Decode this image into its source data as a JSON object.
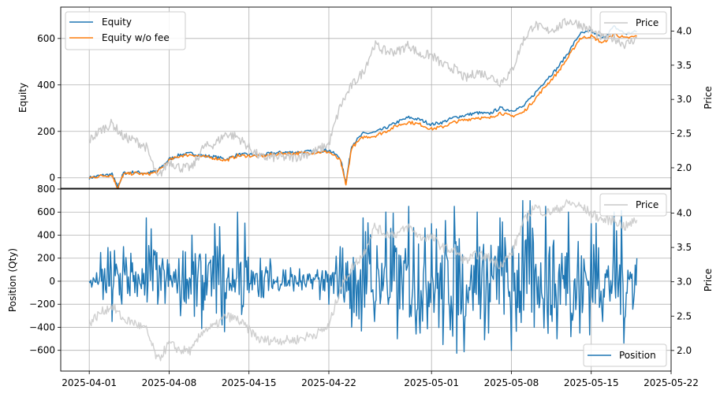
{
  "chart_data": [
    {
      "type": "line",
      "panel": "top",
      "ylabel": "Equity",
      "y2label": "Price",
      "ylim": [
        -45,
        735
      ],
      "y2lim": [
        1.7,
        4.35
      ],
      "yticks": [
        0,
        200,
        400,
        600
      ],
      "y2ticks": [
        2.0,
        2.5,
        3.0,
        3.5,
        4.0
      ],
      "y2ticklabels": [
        "2.0",
        "2.5",
        "3.0",
        "3.5",
        "4.0"
      ],
      "grid": true,
      "legend_left": "upper-left",
      "legend_right": "upper-right",
      "series": [
        {
          "name": "Equity",
          "color": "#1f77b4",
          "x": [
            "2025-04-01",
            "2025-04-02",
            "2025-04-03",
            "2025-04-03T12",
            "2025-04-04",
            "2025-04-05",
            "2025-04-06",
            "2025-04-07",
            "2025-04-08",
            "2025-04-09",
            "2025-04-10",
            "2025-04-11",
            "2025-04-12",
            "2025-04-13",
            "2025-04-14",
            "2025-04-15",
            "2025-04-16",
            "2025-04-17",
            "2025-04-18",
            "2025-04-19",
            "2025-04-20",
            "2025-04-21",
            "2025-04-22",
            "2025-04-23",
            "2025-04-23T12",
            "2025-04-24",
            "2025-04-25",
            "2025-04-26",
            "2025-04-27",
            "2025-04-28",
            "2025-04-29",
            "2025-04-30",
            "2025-05-01",
            "2025-05-02",
            "2025-05-03",
            "2025-05-04",
            "2025-05-05",
            "2025-05-06",
            "2025-05-07",
            "2025-05-08",
            "2025-05-09",
            "2025-05-10",
            "2025-05-11",
            "2025-05-12",
            "2025-05-13",
            "2025-05-14",
            "2025-05-15",
            "2025-05-16",
            "2025-05-17",
            "2025-05-18",
            "2025-05-19"
          ],
          "y": [
            0,
            10,
            15,
            -40,
            20,
            25,
            20,
            30,
            80,
            100,
            105,
            95,
            90,
            80,
            100,
            100,
            98,
            105,
            110,
            110,
            112,
            115,
            120,
            85,
            -20,
            140,
            190,
            195,
            215,
            240,
            260,
            250,
            230,
            240,
            260,
            270,
            280,
            275,
            300,
            290,
            305,
            360,
            420,
            470,
            540,
            620,
            630,
            600,
            650,
            620,
            630
          ]
        },
        {
          "name": "Equity w/o fee",
          "color": "#ff7f0e",
          "x": [
            "2025-04-01",
            "2025-04-02",
            "2025-04-03",
            "2025-04-03T12",
            "2025-04-04",
            "2025-04-05",
            "2025-04-06",
            "2025-04-07",
            "2025-04-08",
            "2025-04-09",
            "2025-04-10",
            "2025-04-11",
            "2025-04-12",
            "2025-04-13",
            "2025-04-14",
            "2025-04-15",
            "2025-04-16",
            "2025-04-17",
            "2025-04-18",
            "2025-04-19",
            "2025-04-20",
            "2025-04-21",
            "2025-04-22",
            "2025-04-23",
            "2025-04-23T12",
            "2025-04-24",
            "2025-04-25",
            "2025-04-26",
            "2025-04-27",
            "2025-04-28",
            "2025-04-29",
            "2025-04-30",
            "2025-05-01",
            "2025-05-02",
            "2025-05-03",
            "2025-05-04",
            "2025-05-05",
            "2025-05-06",
            "2025-05-07",
            "2025-05-08",
            "2025-05-09",
            "2025-05-10",
            "2025-05-11",
            "2025-05-12",
            "2025-05-13",
            "2025-05-14",
            "2025-05-15",
            "2025-05-16",
            "2025-05-17",
            "2025-05-18",
            "2025-05-19"
          ],
          "y": [
            0,
            8,
            12,
            -45,
            15,
            20,
            15,
            25,
            75,
            95,
            100,
            90,
            85,
            75,
            95,
            95,
            93,
            100,
            105,
            105,
            107,
            110,
            112,
            75,
            -30,
            130,
            175,
            180,
            200,
            225,
            240,
            230,
            210,
            220,
            240,
            250,
            260,
            255,
            280,
            265,
            280,
            335,
            395,
            450,
            520,
            600,
            610,
            580,
            620,
            600,
            610
          ]
        },
        {
          "name": "Price",
          "color": "#c8c8c8",
          "axis": "right",
          "x": [
            "2025-04-01",
            "2025-04-02",
            "2025-04-03",
            "2025-04-04",
            "2025-04-05",
            "2025-04-06",
            "2025-04-07",
            "2025-04-08",
            "2025-04-09",
            "2025-04-10",
            "2025-04-11",
            "2025-04-12",
            "2025-04-13",
            "2025-04-14",
            "2025-04-15",
            "2025-04-16",
            "2025-04-17",
            "2025-04-18",
            "2025-04-19",
            "2025-04-20",
            "2025-04-21",
            "2025-04-22",
            "2025-04-23",
            "2025-04-24",
            "2025-04-25",
            "2025-04-26",
            "2025-04-27",
            "2025-04-28",
            "2025-04-29",
            "2025-04-30",
            "2025-05-01",
            "2025-05-02",
            "2025-05-03",
            "2025-05-04",
            "2025-05-05",
            "2025-05-06",
            "2025-05-07",
            "2025-05-08",
            "2025-05-09",
            "2025-05-10",
            "2025-05-11",
            "2025-05-12",
            "2025-05-13",
            "2025-05-14",
            "2025-05-15",
            "2025-05-16",
            "2025-05-17",
            "2025-05-18",
            "2025-05-19"
          ],
          "y": [
            2.4,
            2.55,
            2.65,
            2.45,
            2.4,
            2.3,
            1.85,
            2.1,
            2.0,
            2.0,
            2.3,
            2.35,
            2.5,
            2.45,
            2.3,
            2.15,
            2.15,
            2.15,
            2.15,
            2.2,
            2.25,
            2.35,
            2.9,
            3.2,
            3.4,
            3.8,
            3.7,
            3.7,
            3.8,
            3.65,
            3.65,
            3.5,
            3.45,
            3.3,
            3.4,
            3.35,
            3.25,
            3.4,
            3.85,
            4.1,
            4.0,
            4.05,
            4.15,
            4.1,
            4.0,
            3.9,
            3.9,
            3.8,
            3.9
          ]
        }
      ]
    },
    {
      "type": "line",
      "panel": "bottom",
      "xlabel": "",
      "ylabel": "Position (Qty)",
      "y2label": "Price",
      "ylim": [
        -780,
        800
      ],
      "y2lim": [
        1.7,
        4.35
      ],
      "yticks": [
        -600,
        -400,
        -200,
        0,
        200,
        400,
        600,
        800
      ],
      "yticklabels": [
        "−600",
        "−400",
        "−200",
        "0",
        "200",
        "400",
        "600",
        "800"
      ],
      "y2ticks": [
        2.0,
        2.5,
        3.0,
        3.5,
        4.0
      ],
      "y2ticklabels": [
        "2.0",
        "2.5",
        "3.0",
        "3.5",
        "4.0"
      ],
      "xticks": [
        "2025-04-01",
        "2025-04-08",
        "2025-04-15",
        "2025-04-22",
        "2025-05-01",
        "2025-05-08",
        "2025-05-15",
        "2025-05-22"
      ],
      "grid": true,
      "legend_price": "upper-right",
      "legend_position": "lower-right",
      "series": [
        {
          "name": "Position",
          "color": "#1f77b4",
          "x": [
            "2025-04-01",
            "2025-04-02",
            "2025-04-03",
            "2025-04-04",
            "2025-04-05",
            "2025-04-06",
            "2025-04-07",
            "2025-04-08",
            "2025-04-09",
            "2025-04-10",
            "2025-04-11",
            "2025-04-12",
            "2025-04-13",
            "2025-04-14",
            "2025-04-15",
            "2025-04-16",
            "2025-04-17",
            "2025-04-18",
            "2025-04-19",
            "2025-04-20",
            "2025-04-21",
            "2025-04-22",
            "2025-04-23",
            "2025-04-24",
            "2025-04-25",
            "2025-04-26",
            "2025-04-27",
            "2025-04-28",
            "2025-04-29",
            "2025-04-30",
            "2025-05-01",
            "2025-05-02",
            "2025-05-03",
            "2025-05-04",
            "2025-05-05",
            "2025-05-06",
            "2025-05-07",
            "2025-05-08",
            "2025-05-09",
            "2025-05-10",
            "2025-05-11",
            "2025-05-12",
            "2025-05-13",
            "2025-05-14",
            "2025-05-15",
            "2025-05-16",
            "2025-05-17",
            "2025-05-18",
            "2025-05-19"
          ],
          "y": [
            0,
            250,
            -350,
            300,
            -100,
            550,
            -200,
            150,
            -300,
            400,
            -250,
            500,
            -150,
            600,
            -100,
            200,
            -50,
            100,
            50,
            -50,
            100,
            -200,
            300,
            -400,
            550,
            -350,
            600,
            -500,
            650,
            -450,
            500,
            -550,
            650,
            -300,
            600,
            -450,
            550,
            -600,
            700,
            -400,
            650,
            -500,
            600,
            -450,
            500,
            -350,
            600,
            -300,
            200
          ]
        },
        {
          "name": "Price",
          "color": "#c8c8c8",
          "axis": "right",
          "x": [
            "2025-04-01",
            "2025-04-02",
            "2025-04-03",
            "2025-04-04",
            "2025-04-05",
            "2025-04-06",
            "2025-04-07",
            "2025-04-08",
            "2025-04-09",
            "2025-04-10",
            "2025-04-11",
            "2025-04-12",
            "2025-04-13",
            "2025-04-14",
            "2025-04-15",
            "2025-04-16",
            "2025-04-17",
            "2025-04-18",
            "2025-04-19",
            "2025-04-20",
            "2025-04-21",
            "2025-04-22",
            "2025-04-23",
            "2025-04-24",
            "2025-04-25",
            "2025-04-26",
            "2025-04-27",
            "2025-04-28",
            "2025-04-29",
            "2025-04-30",
            "2025-05-01",
            "2025-05-02",
            "2025-05-03",
            "2025-05-04",
            "2025-05-05",
            "2025-05-06",
            "2025-05-07",
            "2025-05-08",
            "2025-05-09",
            "2025-05-10",
            "2025-05-11",
            "2025-05-12",
            "2025-05-13",
            "2025-05-14",
            "2025-05-15",
            "2025-05-16",
            "2025-05-17",
            "2025-05-18",
            "2025-05-19"
          ],
          "y": [
            2.4,
            2.55,
            2.65,
            2.45,
            2.4,
            2.3,
            1.85,
            2.1,
            2.0,
            2.0,
            2.3,
            2.35,
            2.5,
            2.45,
            2.3,
            2.15,
            2.15,
            2.15,
            2.15,
            2.2,
            2.25,
            2.35,
            2.9,
            3.2,
            3.4,
            3.8,
            3.7,
            3.7,
            3.8,
            3.65,
            3.65,
            3.5,
            3.45,
            3.3,
            3.4,
            3.35,
            3.25,
            3.4,
            3.85,
            4.1,
            4.0,
            4.05,
            4.15,
            4.1,
            4.0,
            3.9,
            3.9,
            3.8,
            3.9
          ]
        }
      ]
    }
  ]
}
